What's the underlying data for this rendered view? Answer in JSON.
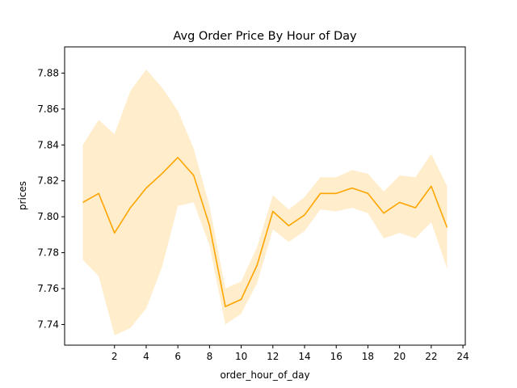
{
  "chart_data": {
    "type": "line",
    "title": "Avg Order Price By Hour of Day",
    "xlabel": "order_hour_of_day",
    "ylabel": "prices",
    "xlim": [
      -1.15,
      24.15
    ],
    "ylim": [
      7.7285,
      7.8946
    ],
    "x_ticks": [
      2,
      4,
      6,
      8,
      10,
      12,
      14,
      16,
      18,
      20,
      22,
      24
    ],
    "y_ticks": [
      7.74,
      7.76,
      7.78,
      7.8,
      7.82,
      7.84,
      7.86,
      7.88
    ],
    "y_tick_labels": [
      "7.74",
      "7.76",
      "7.78",
      "7.80",
      "7.82",
      "7.84",
      "7.86",
      "7.88"
    ],
    "grid": false,
    "series": [
      {
        "color": "#ffa500",
        "band_color": "#ffa500",
        "x": [
          0,
          1,
          2,
          3,
          4,
          5,
          6,
          7,
          8,
          9,
          10,
          11,
          12,
          13,
          14,
          15,
          16,
          17,
          18,
          19,
          20,
          21,
          22,
          23
        ],
        "values": [
          7.808,
          7.813,
          7.791,
          7.805,
          7.816,
          7.824,
          7.833,
          7.823,
          7.795,
          7.75,
          7.754,
          7.773,
          7.803,
          7.795,
          7.801,
          7.813,
          7.813,
          7.816,
          7.813,
          7.802,
          7.808,
          7.805,
          7.817,
          7.794
        ],
        "lower": [
          7.776,
          7.767,
          7.734,
          7.738,
          7.749,
          7.772,
          7.806,
          7.808,
          7.784,
          7.74,
          7.746,
          7.763,
          7.793,
          7.786,
          7.792,
          7.804,
          7.803,
          7.805,
          7.802,
          7.788,
          7.791,
          7.788,
          7.797,
          7.771
        ],
        "upper": [
          7.84,
          7.854,
          7.846,
          7.87,
          7.882,
          7.872,
          7.859,
          7.838,
          7.806,
          7.76,
          7.764,
          7.783,
          7.812,
          7.804,
          7.811,
          7.822,
          7.822,
          7.826,
          7.824,
          7.814,
          7.823,
          7.822,
          7.835,
          7.817
        ]
      }
    ]
  }
}
